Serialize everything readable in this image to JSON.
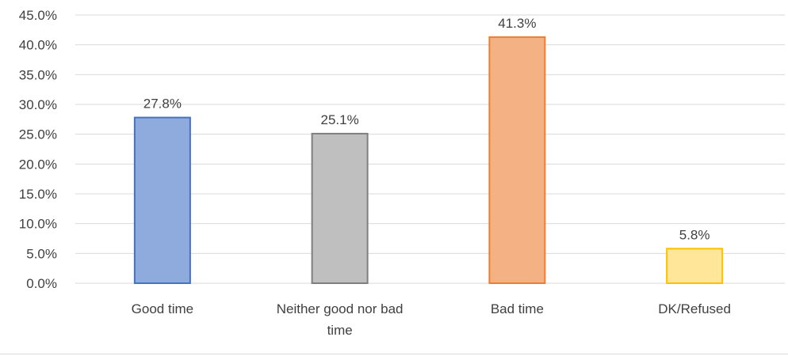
{
  "chart_data": {
    "type": "bar",
    "categories": [
      "Good time",
      "Neither good nor bad time",
      "Bad time",
      "DK/Refused"
    ],
    "category_lines": [
      [
        "Good time"
      ],
      [
        "Neither good nor bad",
        "time"
      ],
      [
        "Bad time"
      ],
      [
        "DK/Refused"
      ]
    ],
    "values": [
      27.8,
      25.1,
      41.3,
      5.8
    ],
    "data_labels": [
      "27.8%",
      "25.1%",
      "41.3%",
      "5.8%"
    ],
    "colors": [
      {
        "fill": "#8faadc",
        "stroke": "#4472c4"
      },
      {
        "fill": "#bfbfbf",
        "stroke": "#7f7f7f"
      },
      {
        "fill": "#f4b183",
        "stroke": "#ed7d31"
      },
      {
        "fill": "#ffe699",
        "stroke": "#ffc000"
      }
    ],
    "yticks": [
      0,
      5,
      10,
      15,
      20,
      25,
      30,
      35,
      40,
      45
    ],
    "ytick_labels": [
      "0.0%",
      "5.0%",
      "10.0%",
      "15.0%",
      "20.0%",
      "25.0%",
      "30.0%",
      "35.0%",
      "40.0%",
      "45.0%"
    ],
    "ylim": [
      0,
      45
    ],
    "grid": true,
    "legend": "none",
    "title": "",
    "xlabel": "",
    "ylabel": ""
  }
}
